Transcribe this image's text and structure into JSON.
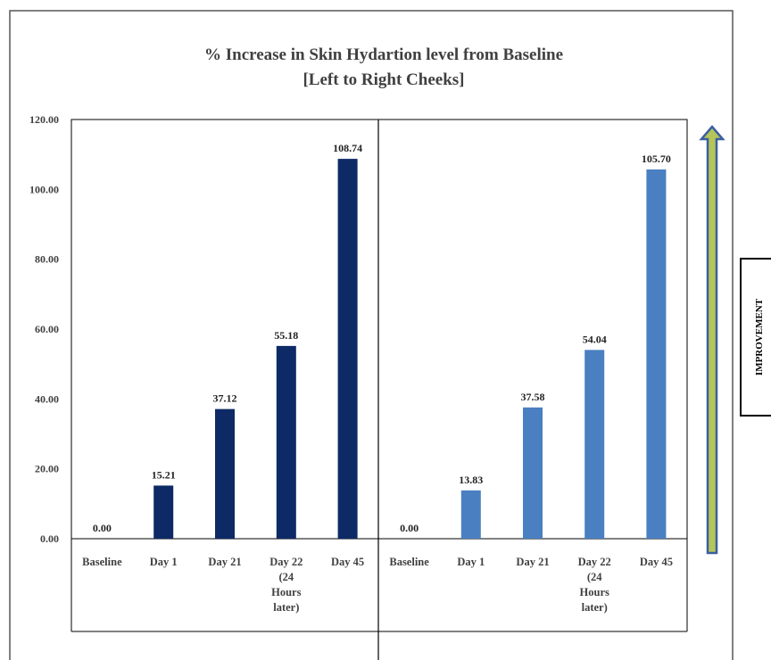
{
  "chart_data": {
    "type": "bar",
    "title": "% Increase in Skin Hydartion level from Baseline",
    "subtitle": "[Left to Right Cheeks]",
    "ylim": [
      0,
      120
    ],
    "yticks": [
      "0.00",
      "20.00",
      "40.00",
      "60.00",
      "80.00",
      "100.00",
      "120.00"
    ],
    "grid": false,
    "categories": [
      [
        "Baseline"
      ],
      [
        "Day 1"
      ],
      [
        "Day 21"
      ],
      [
        "Day 22",
        "(24",
        "Hours",
        "later)"
      ],
      [
        "Day 45"
      ]
    ],
    "series": [
      {
        "values": [
          0.0,
          15.21,
          37.12,
          55.18,
          108.74
        ],
        "labels": [
          "0.00",
          "15.21",
          "37.12",
          "55.18",
          "108.74"
        ],
        "color": "#0d2a66"
      },
      {
        "values": [
          0.0,
          13.83,
          37.58,
          54.04,
          105.7
        ],
        "labels": [
          "0.00",
          "13.83",
          "37.58",
          "54.04",
          "105.70"
        ],
        "color": "#4a7fc1"
      }
    ]
  },
  "side_label": "IMPROVEMENT",
  "colors": {
    "arrow_fill": "#b5c55a",
    "arrow_outline": "#3a5fa0",
    "frame": "#000000"
  }
}
